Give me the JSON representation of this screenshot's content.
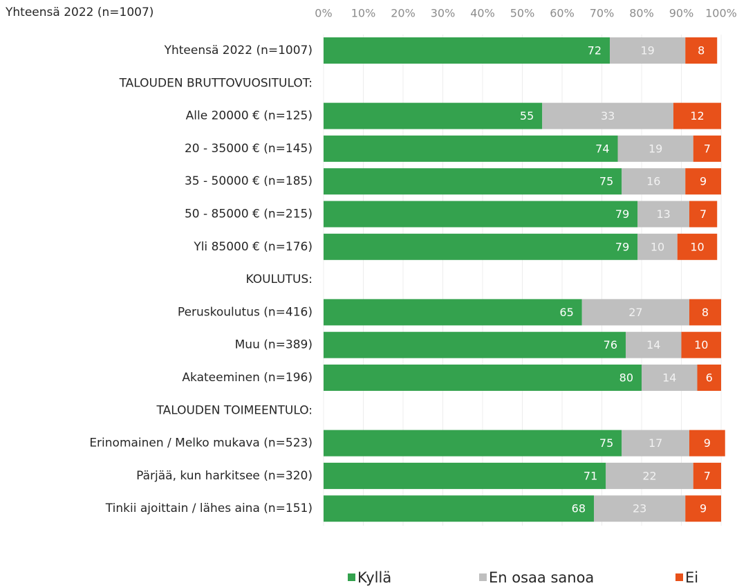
{
  "chart_data": {
    "type": "stacked-bar",
    "title": "Yhteensä 2022 (n=1007)",
    "categories": [
      "Yhteensä 2022 (n=1007)",
      "TALOUDEN BRUTTOVUOSITULOT:",
      "Alle 20000 € (n=125)",
      "20 - 35000 € (n=145)",
      "35 - 50000 € (n=185)",
      "50 - 85000 € (n=215)",
      "Yli 85000 € (n=176)",
      "KOULUTUS:",
      "Peruskoulutus (n=416)",
      "Muu (n=389)",
      "Akateeminen (n=196)",
      "TALOUDEN TOIMEENTULO:",
      "Erinomainen / Melko mukava (n=523)",
      "Pärjää, kun harkitsee (n=320)",
      "Tinkii ajoittain / lähes aina (n=151)"
    ],
    "series": [
      {
        "name": "Kyllä",
        "color": "#34a24e",
        "values": [
          72,
          null,
          55,
          74,
          75,
          79,
          79,
          null,
          65,
          76,
          80,
          null,
          75,
          71,
          68
        ]
      },
      {
        "name": "En osaa sanoa",
        "color": "#bfbfbf",
        "values": [
          19,
          null,
          33,
          19,
          16,
          13,
          10,
          null,
          27,
          14,
          14,
          null,
          17,
          22,
          23
        ]
      },
      {
        "name": "Ei",
        "color": "#e8511a",
        "values": [
          8,
          null,
          12,
          7,
          9,
          7,
          10,
          null,
          8,
          10,
          6,
          null,
          9,
          7,
          9
        ]
      }
    ],
    "xlim": [
      0,
      100
    ],
    "xticks": [
      {
        "value": 0,
        "label": "0%"
      },
      {
        "value": 10,
        "label": "10%"
      },
      {
        "value": 20,
        "label": "20%"
      },
      {
        "value": 30,
        "label": "30%"
      },
      {
        "value": 40,
        "label": "40%"
      },
      {
        "value": 50,
        "label": "50%"
      },
      {
        "value": 60,
        "label": "60%"
      },
      {
        "value": 70,
        "label": "70%"
      },
      {
        "value": 80,
        "label": "80%"
      },
      {
        "value": 90,
        "label": "90%"
      },
      {
        "value": 100,
        "label": "100%"
      }
    ],
    "grid": true,
    "legend": "bottom"
  }
}
